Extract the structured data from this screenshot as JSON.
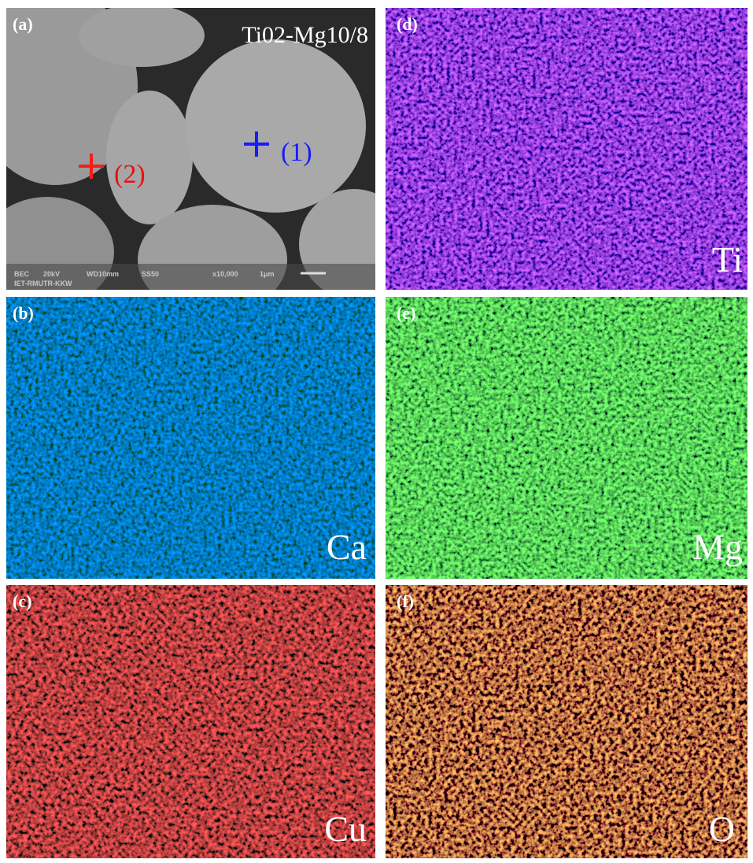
{
  "panels": [
    {
      "label": "(a)",
      "title": "Ti02-Mg10/8",
      "points": [
        {
          "label": "(1)"
        },
        {
          "label": "(2)"
        }
      ],
      "footer": [
        "BEC",
        "20kV",
        "WD10mm",
        "SS50",
        "x10,000",
        "1μm",
        "IET-RMUTR-KKW"
      ]
    },
    {
      "label": "(b)",
      "element": "Ca"
    },
    {
      "label": "(c)",
      "element": "Cu"
    },
    {
      "label": "(d)",
      "element": "Ti"
    },
    {
      "label": "(e)",
      "element": "Mg"
    },
    {
      "label": "(f)",
      "element": "O"
    }
  ]
}
